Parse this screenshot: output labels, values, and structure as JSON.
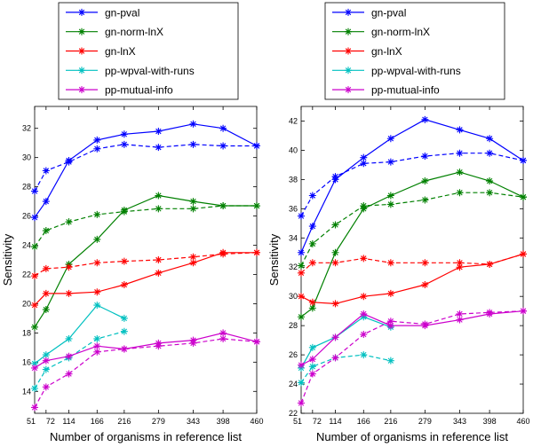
{
  "chart_data": [
    {
      "type": "line",
      "title": "",
      "xlabel": "Number of organisms in reference list",
      "ylabel": "Sensitivity",
      "x": [
        51,
        72,
        114,
        166,
        216,
        279,
        343,
        398,
        460
      ],
      "x_tick_labels": [
        "51",
        "72",
        "114",
        "166",
        "216",
        "279",
        "343",
        "398",
        "460"
      ],
      "xlim": [
        51,
        460
      ],
      "ylim": [
        12.5,
        33.5
      ],
      "y_ticks": [
        14,
        16,
        18,
        20,
        22,
        24,
        26,
        28,
        30,
        32
      ],
      "series": [
        {
          "name": "gn-pval",
          "color": "#0000ff",
          "style": "solid",
          "values": [
            25.9,
            27.0,
            29.8,
            31.2,
            31.6,
            31.8,
            32.3,
            32.0,
            30.8
          ]
        },
        {
          "name": "gn-pval",
          "color": "#0000ff",
          "style": "dashed",
          "values": [
            27.7,
            29.1,
            29.7,
            30.6,
            30.9,
            30.7,
            30.9,
            30.8,
            30.8
          ]
        },
        {
          "name": "gn-norm-lnX",
          "color": "#008000",
          "style": "solid",
          "values": [
            18.4,
            19.6,
            22.7,
            24.4,
            26.4,
            27.4,
            27.0,
            26.7,
            26.7
          ]
        },
        {
          "name": "gn-norm-lnX",
          "color": "#008000",
          "style": "dashed",
          "values": [
            23.9,
            25.0,
            25.6,
            26.1,
            26.3,
            26.5,
            26.5,
            26.7,
            26.7
          ]
        },
        {
          "name": "gn-lnX",
          "color": "#ff0000",
          "style": "solid",
          "values": [
            19.9,
            20.7,
            20.7,
            20.8,
            21.3,
            22.1,
            22.8,
            23.5,
            23.5
          ]
        },
        {
          "name": "gn-lnX",
          "color": "#ff0000",
          "style": "dashed",
          "values": [
            21.9,
            22.4,
            22.5,
            22.8,
            22.9,
            23.0,
            23.2,
            23.4,
            23.5
          ]
        },
        {
          "name": "pp-wpval-with-runs",
          "color": "#00c0c0",
          "style": "solid",
          "values": [
            15.9,
            16.5,
            17.6,
            19.9,
            19.0,
            null,
            null,
            null,
            null
          ]
        },
        {
          "name": "pp-wpval-with-runs",
          "color": "#00c0c0",
          "style": "dashed",
          "values": [
            14.2,
            15.5,
            16.3,
            17.6,
            18.1,
            null,
            null,
            null,
            null
          ]
        },
        {
          "name": "pp-mutual-info",
          "color": "#cc00cc",
          "style": "solid",
          "values": [
            15.6,
            16.1,
            16.4,
            17.1,
            16.9,
            17.3,
            17.5,
            18.0,
            17.4
          ]
        },
        {
          "name": "pp-mutual-info",
          "color": "#cc00cc",
          "style": "dashed",
          "values": [
            12.9,
            14.3,
            15.2,
            16.7,
            16.9,
            17.1,
            17.3,
            17.6,
            17.4
          ]
        }
      ],
      "legend": {
        "placement": "top",
        "entries": [
          {
            "label": "gn-pval",
            "color": "#0000ff"
          },
          {
            "label": "gn-norm-lnX",
            "color": "#008000"
          },
          {
            "label": "gn-lnX",
            "color": "#ff0000"
          },
          {
            "label": "pp-wpval-with-runs",
            "color": "#00c0c0"
          },
          {
            "label": "pp-mutual-info",
            "color": "#cc00cc"
          }
        ]
      }
    },
    {
      "type": "line",
      "title": "",
      "xlabel": "Number of organisms in reference list",
      "ylabel": "Sensitivity",
      "x": [
        51,
        72,
        114,
        166,
        216,
        279,
        343,
        398,
        460
      ],
      "x_tick_labels": [
        "51",
        "72",
        "114",
        "166",
        "216",
        "279",
        "343",
        "398",
        "460"
      ],
      "xlim": [
        51,
        460
      ],
      "ylim": [
        22,
        43
      ],
      "y_ticks": [
        22,
        24,
        26,
        28,
        30,
        32,
        34,
        36,
        38,
        40,
        42
      ],
      "series": [
        {
          "name": "gn-pval",
          "color": "#0000ff",
          "style": "solid",
          "values": [
            33.0,
            34.8,
            38.0,
            39.5,
            40.8,
            42.1,
            41.4,
            40.8,
            39.3
          ]
        },
        {
          "name": "gn-pval",
          "color": "#0000ff",
          "style": "dashed",
          "values": [
            35.5,
            36.9,
            38.2,
            39.1,
            39.2,
            39.6,
            39.8,
            39.8,
            39.3
          ]
        },
        {
          "name": "gn-norm-lnX",
          "color": "#008000",
          "style": "solid",
          "values": [
            28.6,
            29.2,
            33.0,
            36.0,
            36.9,
            37.9,
            38.5,
            37.9,
            36.8
          ]
        },
        {
          "name": "gn-norm-lnX",
          "color": "#008000",
          "style": "dashed",
          "values": [
            32.1,
            33.6,
            34.9,
            36.2,
            36.3,
            36.6,
            37.1,
            37.1,
            36.8
          ]
        },
        {
          "name": "gn-lnX",
          "color": "#ff0000",
          "style": "solid",
          "values": [
            30.0,
            29.6,
            29.5,
            30.0,
            30.2,
            30.8,
            32.0,
            32.2,
            32.9
          ]
        },
        {
          "name": "gn-lnX",
          "color": "#ff0000",
          "style": "dashed",
          "values": [
            31.6,
            32.3,
            32.3,
            32.6,
            32.3,
            32.3,
            32.3,
            32.2,
            32.9
          ]
        },
        {
          "name": "pp-wpval-with-runs",
          "color": "#00c0c0",
          "style": "solid",
          "values": [
            25.1,
            26.5,
            27.2,
            28.6,
            27.9,
            null,
            null,
            null,
            null
          ]
        },
        {
          "name": "pp-wpval-with-runs",
          "color": "#00c0c0",
          "style": "dashed",
          "values": [
            24.1,
            25.2,
            25.8,
            26.0,
            25.6,
            null,
            null,
            null,
            null
          ]
        },
        {
          "name": "pp-mutual-info",
          "color": "#cc00cc",
          "style": "solid",
          "values": [
            25.3,
            25.7,
            27.2,
            28.8,
            28.0,
            28.0,
            28.4,
            28.8,
            29.0
          ]
        },
        {
          "name": "pp-mutual-info",
          "color": "#cc00cc",
          "style": "dashed",
          "values": [
            22.7,
            24.7,
            25.8,
            27.4,
            28.3,
            28.1,
            28.8,
            28.9,
            29.0
          ]
        }
      ],
      "legend": {
        "placement": "top",
        "entries": [
          {
            "label": "gn-pval",
            "color": "#0000ff"
          },
          {
            "label": "gn-norm-lnX",
            "color": "#008000"
          },
          {
            "label": "gn-lnX",
            "color": "#ff0000"
          },
          {
            "label": "pp-wpval-with-runs",
            "color": "#00c0c0"
          },
          {
            "label": "pp-mutual-info",
            "color": "#cc00cc"
          }
        ]
      }
    }
  ]
}
